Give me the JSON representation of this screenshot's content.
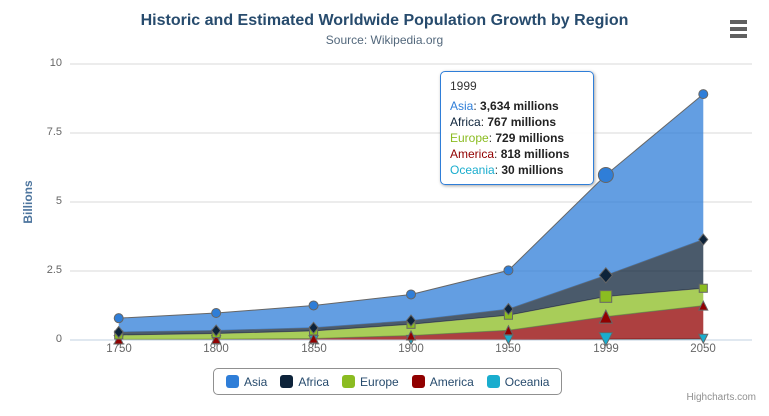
{
  "chart_data": {
    "type": "area",
    "stacked": true,
    "title": "Historic and Estimated Worldwide Population Growth by Region",
    "subtitle": "Source: Wikipedia.org",
    "xlabel": "",
    "ylabel": "Billions",
    "units": "millions",
    "ylim": [
      0,
      10
    ],
    "yticks": [
      "0",
      "2.5",
      "5",
      "7.5",
      "10"
    ],
    "grid": true,
    "legend_position": "bottom",
    "categories": [
      "1750",
      "1800",
      "1850",
      "1900",
      "1950",
      "1999",
      "2050"
    ],
    "series": [
      {
        "name": "Asia",
        "color": "#2f7ed8",
        "marker": "circle",
        "values": [
          502,
          635,
          809,
          947,
          1402,
          3634,
          5268
        ]
      },
      {
        "name": "Africa",
        "color": "#0d233a",
        "marker": "diamond",
        "values": [
          106,
          107,
          111,
          133,
          221,
          767,
          1766
        ]
      },
      {
        "name": "Europe",
        "color": "#8bbc21",
        "marker": "square",
        "values": [
          163,
          203,
          276,
          408,
          547,
          729,
          628
        ]
      },
      {
        "name": "America",
        "color": "#910000",
        "marker": "triangle",
        "values": [
          18,
          31,
          54,
          156,
          339,
          818,
          1201
        ]
      },
      {
        "name": "Oceania",
        "color": "#1aadce",
        "marker": "triangle-down",
        "values": [
          2,
          2,
          2,
          6,
          13,
          30,
          46
        ]
      }
    ],
    "hover_category_index": 5
  },
  "tooltip": {
    "header": "1999",
    "separator": ": ",
    "rows": [
      {
        "name": "Asia",
        "value": "3,634 millions",
        "color": "#2f7ed8"
      },
      {
        "name": "Africa",
        "value": "767 millions",
        "color": "#0d233a"
      },
      {
        "name": "Europe",
        "value": "729 millions",
        "color": "#8bbc21"
      },
      {
        "name": "America",
        "value": "818 millions",
        "color": "#910000"
      },
      {
        "name": "Oceania",
        "value": "30 millions",
        "color": "#1aadce"
      }
    ]
  },
  "credits": "Highcharts.com",
  "colors": {
    "title": "#274b6d",
    "subtitle": "#53687c",
    "axis_title": "#4d759e",
    "labels": "#666666",
    "grid": "#d8d8d8",
    "axis_line": "#c0d0e0",
    "series_line": "#666666",
    "tooltip_border": "#2f7ed8",
    "legend_border": "#909090",
    "fill_opacity": 0.75
  }
}
